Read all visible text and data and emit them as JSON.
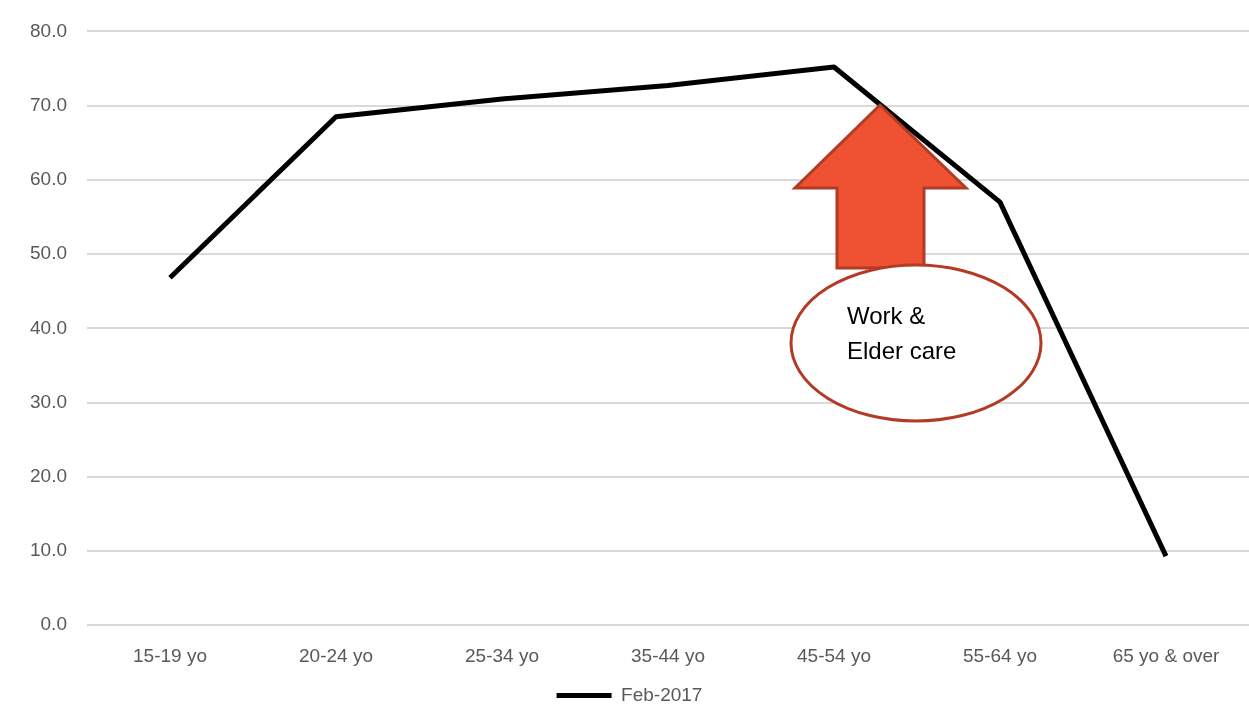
{
  "chart_data": {
    "type": "line",
    "categories": [
      "15-19 yo",
      "20-24 yo",
      "25-34 yo",
      "35-44 yo",
      "45-54 yo",
      "55-64 yo",
      "65 yo & over"
    ],
    "series": [
      {
        "name": "Feb-2017",
        "color": "#000000",
        "values": [
          46.8,
          68.5,
          70.9,
          72.7,
          75.2,
          57.0,
          9.3
        ]
      }
    ],
    "ylim": [
      0,
      80
    ],
    "yticks": [
      {
        "value": 0,
        "label": "0.0"
      },
      {
        "value": 10,
        "label": "10.0"
      },
      {
        "value": 20,
        "label": "20.0"
      },
      {
        "value": 30,
        "label": "30.0"
      },
      {
        "value": 40,
        "label": "40.0"
      },
      {
        "value": 50,
        "label": "50.0"
      },
      {
        "value": 60,
        "label": "60.0"
      },
      {
        "value": 70,
        "label": "70.0"
      },
      {
        "value": 80,
        "label": "80.0"
      }
    ],
    "grid": "y",
    "legend": "bottom",
    "marker": "none",
    "annotations": [
      "Work & Elder care"
    ]
  }
}
